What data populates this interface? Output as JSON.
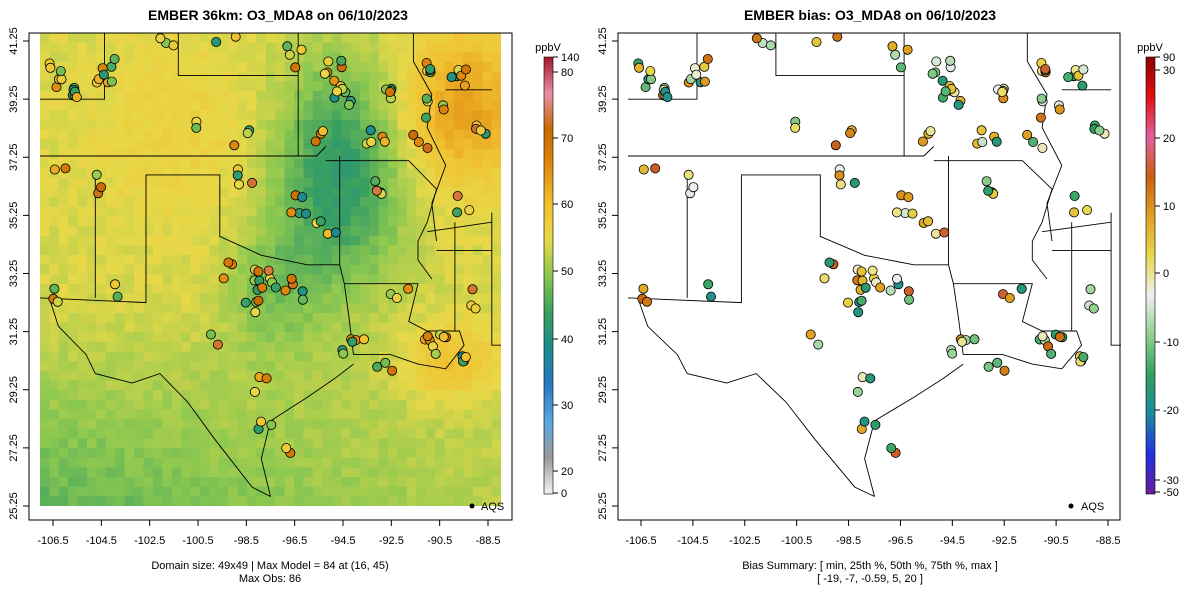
{
  "left_panel": {
    "title": "EMBER 36km: O3_MDA8 on 06/10/2023",
    "legend_point_label": "AQS",
    "colorbar_unit": "ppbV",
    "colorbar_ticks": [
      "140",
      "80",
      "70",
      "60",
      "50",
      "40",
      "30",
      "20",
      "0"
    ],
    "footer_line1": "Domain size: 49x49 | Max Model = 84 at (16, 45)",
    "footer_line2": "Max Obs: 86"
  },
  "right_panel": {
    "title": "EMBER bias: O3_MDA8 on 06/10/2023",
    "legend_point_label": "AQS",
    "colorbar_unit": "ppbV",
    "colorbar_ticks": [
      "90",
      "30",
      "20",
      "10",
      "0",
      "-10",
      "-20",
      "-30",
      "-50"
    ],
    "footer_line1": "Bias Summary: [ min, 25th %, 50th %, 75th %, max ]",
    "footer_line2": "[ -19,   -7,   -0.59,   5,   20 ]"
  },
  "axes": {
    "x_ticks": [
      "-106.5",
      "-104.5",
      "-102.5",
      "-100.5",
      "-98.5",
      "-96.5",
      "-94.5",
      "-92.5",
      "-90.5",
      "-88.5"
    ],
    "y_ticks": [
      "41.25",
      "39.25",
      "37.25",
      "35.25",
      "33.25",
      "31.25",
      "29.25",
      "27.25",
      "25.25"
    ]
  },
  "colors": {
    "model_scale": [
      "#f4f4f4",
      "#9a9a9a",
      "#58a8e0",
      "#2a78c0",
      "#1e8c8c",
      "#3aa060",
      "#8cc850",
      "#e8d848",
      "#f0c030",
      "#e08a10",
      "#c86a00",
      "#e890a8",
      "#a01828"
    ],
    "bias_scale": [
      "#6a1b9a",
      "#2030e0",
      "#1a8aa0",
      "#30a060",
      "#90d090",
      "#f0f0f0",
      "#e8d848",
      "#e0a020",
      "#c86010",
      "#e060a0",
      "#e01010",
      "#900000"
    ],
    "border": "#000000"
  }
}
